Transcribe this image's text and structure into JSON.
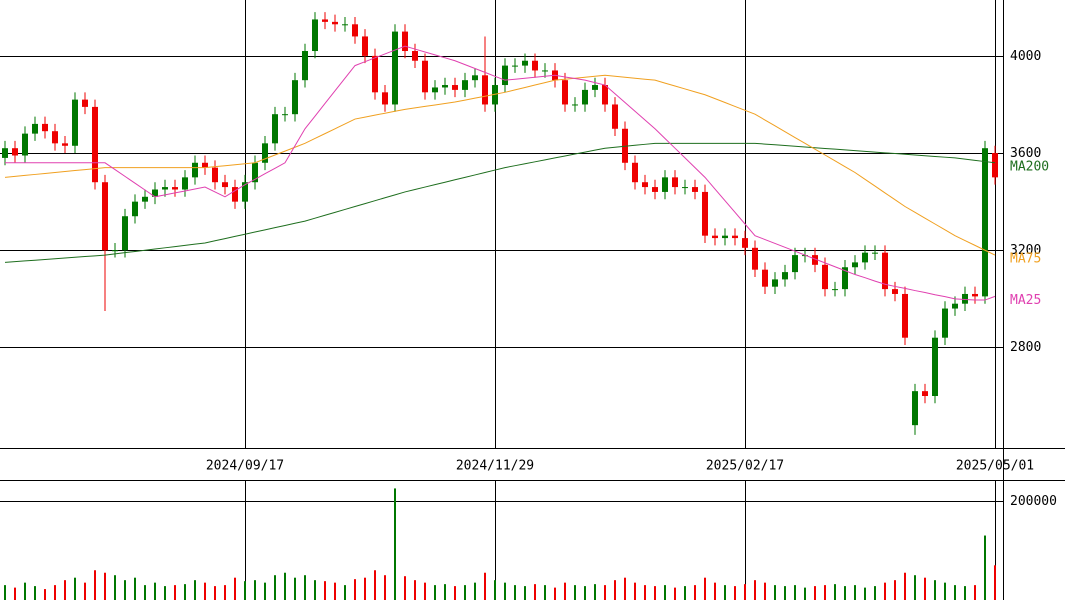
{
  "chart_data": [
    {
      "type": "candlestick",
      "categories": [
        null,
        null,
        null,
        null,
        null,
        null,
        null,
        null,
        null,
        null,
        null,
        null,
        null,
        null,
        null,
        null,
        null,
        null,
        null,
        null,
        null,
        null,
        null,
        null,
        "2024/09/17",
        null,
        null,
        null,
        null,
        null,
        null,
        null,
        null,
        null,
        null,
        null,
        null,
        null,
        null,
        null,
        null,
        null,
        null,
        null,
        null,
        null,
        null,
        null,
        null,
        "2024/11/29",
        null,
        null,
        null,
        null,
        null,
        null,
        null,
        null,
        null,
        null,
        null,
        null,
        null,
        null,
        null,
        null,
        null,
        null,
        null,
        null,
        null,
        null,
        null,
        null,
        "2025/02/17",
        null,
        null,
        null,
        null,
        null,
        null,
        null,
        null,
        null,
        null,
        null,
        null,
        null,
        null,
        null,
        null,
        null,
        null,
        null,
        null,
        null,
        null,
        null,
        null,
        "2025/05/01"
      ],
      "open": [
        3580,
        3620,
        3590,
        3680,
        3720,
        3690,
        3640,
        3630,
        3820,
        3790,
        3480,
        3200,
        3200,
        3340,
        3400,
        3420,
        3450,
        3460,
        3450,
        3500,
        3560,
        3540,
        3480,
        3460,
        3400,
        3480,
        3560,
        3640,
        3760,
        3760,
        3900,
        4020,
        4150,
        4140,
        4130,
        4130,
        4080,
        4000,
        3850,
        3800,
        4100,
        4020,
        3980,
        3850,
        3870,
        3880,
        3860,
        3900,
        3920,
        3800,
        3880,
        3960,
        3960,
        3980,
        3940,
        3940,
        3900,
        3800,
        3800,
        3860,
        3880,
        3800,
        3700,
        3560,
        3480,
        3460,
        3440,
        3500,
        3460,
        3460,
        3440,
        3260,
        3250,
        3260,
        3250,
        3210,
        3120,
        3050,
        3080,
        3110,
        3180,
        3180,
        3140,
        3040,
        3040,
        3130,
        3150,
        3190,
        3190,
        3040,
        3020,
        2480,
        2620,
        2600,
        2840,
        2960,
        2980,
        3020,
        3010,
        3600
      ],
      "high": [
        3650,
        3650,
        3710,
        3750,
        3750,
        3720,
        3670,
        3850,
        3850,
        3820,
        3510,
        3230,
        3370,
        3430,
        3450,
        3480,
        3490,
        3490,
        3530,
        3590,
        3590,
        3570,
        3510,
        3490,
        3510,
        3590,
        3670,
        3790,
        3790,
        3930,
        4050,
        4180,
        4180,
        4170,
        4160,
        4160,
        4110,
        4030,
        3880,
        4130,
        4130,
        4050,
        4010,
        3900,
        3910,
        3910,
        3930,
        3950,
        4080,
        3910,
        3990,
        3990,
        4010,
        4010,
        3970,
        3970,
        3930,
        3830,
        3890,
        3910,
        3910,
        3830,
        3730,
        3590,
        3510,
        3490,
        3530,
        3530,
        3490,
        3490,
        3470,
        3290,
        3290,
        3290,
        3280,
        3240,
        3150,
        3110,
        3140,
        3210,
        3210,
        3210,
        3170,
        3070,
        3160,
        3180,
        3220,
        3220,
        3220,
        3070,
        3050,
        2650,
        2650,
        2870,
        2990,
        3010,
        3050,
        3050,
        3650,
        3630
      ],
      "low": [
        3550,
        3560,
        3560,
        3650,
        3660,
        3610,
        3600,
        3600,
        3760,
        3450,
        2950,
        3170,
        3170,
        3310,
        3370,
        3390,
        3420,
        3420,
        3420,
        3470,
        3510,
        3450,
        3430,
        3370,
        3370,
        3450,
        3530,
        3610,
        3730,
        3730,
        3870,
        3990,
        4110,
        4100,
        4100,
        4050,
        3970,
        3820,
        3770,
        3770,
        3990,
        3950,
        3820,
        3820,
        3840,
        3830,
        3830,
        3870,
        3770,
        3770,
        3850,
        3930,
        3930,
        3910,
        3910,
        3870,
        3770,
        3770,
        3770,
        3830,
        3770,
        3670,
        3530,
        3450,
        3430,
        3410,
        3410,
        3430,
        3430,
        3410,
        3230,
        3220,
        3220,
        3220,
        3180,
        3090,
        3020,
        3020,
        3050,
        3080,
        3150,
        3110,
        3010,
        3010,
        3010,
        3100,
        3120,
        3160,
        3010,
        2990,
        2810,
        2440,
        2570,
        2570,
        2810,
        2930,
        2950,
        2980,
        2980,
        3470
      ],
      "close": [
        3620,
        3590,
        3680,
        3720,
        3690,
        3640,
        3630,
        3820,
        3790,
        3480,
        3200,
        3200,
        3340,
        3400,
        3420,
        3450,
        3460,
        3450,
        3500,
        3560,
        3540,
        3480,
        3460,
        3400,
        3480,
        3560,
        3640,
        3760,
        3760,
        3900,
        4020,
        4150,
        4140,
        4130,
        4130,
        4080,
        4000,
        3850,
        3800,
        4100,
        4020,
        3980,
        3850,
        3870,
        3880,
        3860,
        3900,
        3920,
        3800,
        3880,
        3960,
        3960,
        3980,
        3940,
        3940,
        3900,
        3800,
        3800,
        3860,
        3880,
        3800,
        3700,
        3560,
        3480,
        3460,
        3440,
        3500,
        3460,
        3460,
        3440,
        3260,
        3250,
        3260,
        3250,
        3210,
        3120,
        3050,
        3080,
        3110,
        3180,
        3180,
        3140,
        3040,
        3040,
        3130,
        3150,
        3190,
        3190,
        3040,
        3020,
        2840,
        2620,
        2600,
        2840,
        2960,
        2980,
        3020,
        3010,
        3620,
        3500
      ],
      "up_color": "#007700",
      "down_color": "#ee0000",
      "series": [
        {
          "name": "MA200",
          "color": "#1e6e1e",
          "values": [
            3150,
            3153,
            3156,
            3159,
            3162,
            3165,
            3168,
            3171,
            3174,
            3177,
            3180,
            3185,
            3190,
            3195,
            3200,
            3205,
            3210,
            3215,
            3220,
            3225,
            3230,
            3239,
            3248,
            3257,
            3266,
            3275,
            3284,
            3293,
            3302,
            3311,
            3320,
            3332,
            3344,
            3356,
            3368,
            3380,
            3392,
            3404,
            3416,
            3428,
            3440,
            3450,
            3460,
            3470,
            3480,
            3490,
            3500,
            3510,
            3520,
            3530,
            3540,
            3548,
            3556,
            3564,
            3572,
            3580,
            3588,
            3596,
            3604,
            3612,
            3620,
            3624,
            3628,
            3632,
            3636,
            3640,
            3640,
            3640,
            3640,
            3640,
            3640,
            3640,
            3640,
            3640,
            3640,
            3640,
            3637,
            3634,
            3631,
            3628,
            3625,
            3622,
            3619,
            3616,
            3613,
            3610,
            3607,
            3604,
            3601,
            3598,
            3595,
            3592,
            3589,
            3586,
            3583,
            3580,
            3575,
            3570,
            3565,
            3560
          ]
        },
        {
          "name": "MA75",
          "color": "#f0a020",
          "values": [
            3500,
            3504,
            3508,
            3512,
            3516,
            3520,
            3524,
            3528,
            3532,
            3536,
            3540,
            3540,
            3540,
            3540,
            3540,
            3540,
            3540,
            3540,
            3540,
            3540,
            3540,
            3544,
            3548,
            3552,
            3556,
            3560,
            3576,
            3592,
            3608,
            3624,
            3640,
            3660,
            3680,
            3700,
            3720,
            3740,
            3748,
            3756,
            3764,
            3772,
            3780,
            3786,
            3792,
            3798,
            3804,
            3810,
            3818,
            3826,
            3834,
            3842,
            3850,
            3860,
            3870,
            3880,
            3890,
            3900,
            3904,
            3908,
            3912,
            3916,
            3920,
            3916,
            3912,
            3908,
            3904,
            3900,
            3888,
            3876,
            3864,
            3852,
            3840,
            3824,
            3808,
            3792,
            3776,
            3760,
            3736,
            3712,
            3688,
            3664,
            3640,
            3616,
            3592,
            3568,
            3544,
            3520,
            3492,
            3464,
            3436,
            3408,
            3380,
            3356,
            3332,
            3308,
            3284,
            3260,
            3240,
            3220,
            3200,
            3180
          ]
        },
        {
          "name": "MA25",
          "color": "#e040b0",
          "values": [
            3560,
            3560,
            3560,
            3560,
            3560,
            3560,
            3560,
            3560,
            3560,
            3560,
            3560,
            3532,
            3504,
            3476,
            3448,
            3420,
            3428,
            3436,
            3444,
            3452,
            3460,
            3440,
            3420,
            3445,
            3470,
            3492,
            3515,
            3537,
            3560,
            3630,
            3700,
            3752,
            3804,
            3856,
            3908,
            3960,
            3976,
            3992,
            4008,
            4024,
            4040,
            4028,
            4016,
            4004,
            3992,
            3980,
            3964,
            3948,
            3932,
            3916,
            3900,
            3904,
            3908,
            3912,
            3916,
            3920,
            3913,
            3907,
            3900,
            3890,
            3880,
            3844,
            3808,
            3772,
            3736,
            3700,
            3660,
            3620,
            3580,
            3540,
            3500,
            3452,
            3404,
            3356,
            3308,
            3260,
            3244,
            3228,
            3212,
            3196,
            3180,
            3164,
            3148,
            3132,
            3116,
            3100,
            3087,
            3073,
            3060,
            3051,
            3043,
            3034,
            3026,
            3017,
            3009,
            3000,
            2997,
            2995,
            2995,
            3010
          ]
        }
      ],
      "ylim": [
        2386,
        4230
      ],
      "yticks": [
        2800,
        3200,
        3600,
        4000
      ]
    },
    {
      "type": "bar",
      "values": [
        30000,
        25000,
        35000,
        28000,
        22000,
        30000,
        40000,
        45000,
        35000,
        60000,
        55000,
        50000,
        40000,
        45000,
        30000,
        35000,
        28000,
        30000,
        32000,
        40000,
        35000,
        28000,
        30000,
        45000,
        38000,
        40000,
        35000,
        50000,
        55000,
        45000,
        50000,
        40000,
        38000,
        35000,
        30000,
        42000,
        45000,
        60000,
        50000,
        225000,
        48000,
        40000,
        35000,
        30000,
        32000,
        28000,
        30000,
        35000,
        55000,
        40000,
        35000,
        30000,
        28000,
        32000,
        30000,
        25000,
        35000,
        30000,
        28000,
        32000,
        30000,
        40000,
        45000,
        35000,
        30000,
        28000,
        30000,
        25000,
        28000,
        30000,
        45000,
        35000,
        30000,
        28000,
        32000,
        40000,
        35000,
        30000,
        28000,
        30000,
        25000,
        28000,
        30000,
        32000,
        28000,
        30000,
        25000,
        28000,
        35000,
        40000,
        55000,
        50000,
        45000,
        40000,
        35000,
        30000,
        28000,
        30000,
        130000,
        70000
      ],
      "ylim": [
        0,
        242000
      ],
      "yticks": [
        200000
      ]
    }
  ]
}
